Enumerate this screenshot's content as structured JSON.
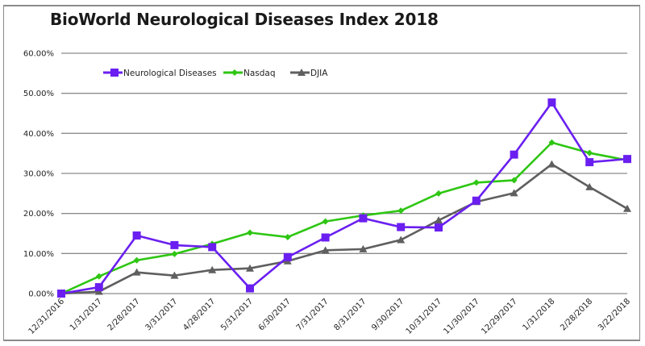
{
  "chart_data": {
    "type": "line",
    "title": "BioWorld Neurological Diseases Index 2018",
    "xlabel": "",
    "ylabel": "",
    "ylim": [
      0,
      60
    ],
    "yticks": [
      "0.00%",
      "10.00%",
      "20.00%",
      "30.00%",
      "40.00%",
      "50.00%",
      "60.00%"
    ],
    "ytick_values": [
      0,
      10,
      20,
      30,
      40,
      50,
      60
    ],
    "grid": true,
    "legend_position": "top",
    "categories": [
      "12/31/2016",
      "1/31/2017",
      "2/28/2017",
      "3/31/2017",
      "4/28/2017",
      "5/31/2017",
      "6/30/2017",
      "7/31/2017",
      "8/31/2017",
      "9/30/2017",
      "10/31/2017",
      "11/30/2017",
      "12/29/2017",
      "1/31/2018",
      "2/28/2018",
      "3/22/2018"
    ],
    "series": [
      {
        "name": "Neurological Diseases",
        "color": "#6a1ff0",
        "marker": "square",
        "values": [
          0,
          1.6,
          14.5,
          12.1,
          11.6,
          1.3,
          9.1,
          14.0,
          18.8,
          16.6,
          16.5,
          23.2,
          34.7,
          47.7,
          32.8,
          33.6
        ]
      },
      {
        "name": "Nasdaq",
        "color": "#2ec613",
        "marker": "diamond",
        "values": [
          0,
          4.3,
          8.3,
          9.9,
          12.4,
          15.2,
          14.1,
          18.0,
          19.5,
          20.7,
          25.0,
          27.7,
          28.3,
          37.7,
          35.1,
          33.3
        ]
      },
      {
        "name": "DJIA",
        "color": "#5f5f5f",
        "marker": "triangle",
        "values": [
          0,
          0.5,
          5.3,
          4.5,
          5.9,
          6.3,
          8.1,
          10.8,
          11.1,
          13.4,
          18.3,
          22.9,
          25.1,
          32.3,
          26.6,
          21.2
        ]
      }
    ]
  }
}
